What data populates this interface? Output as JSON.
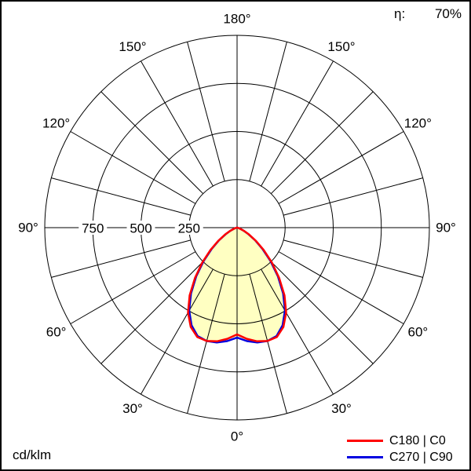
{
  "chart_data": {
    "type": "polar",
    "title": "",
    "units": "cd/klm",
    "efficiency_label": "η:",
    "efficiency_value": "70%",
    "radial_max": 1000,
    "radial_ticks": [
      750,
      500,
      250
    ],
    "grid_circles": [
      250,
      500,
      750,
      1000
    ],
    "angle_ticks_deg": [
      0,
      30,
      60,
      90,
      120,
      150,
      180
    ],
    "spoke_step_deg": 15,
    "gamma_step_deg": 5,
    "fill_color": "#ffffc2",
    "legend_position": "bottom-right",
    "series": [
      {
        "name": "C180 | C0",
        "color": "#ff0000",
        "values": [
          555,
          580,
          600,
          610,
          605,
          570,
          510,
          430,
          340,
          255,
          180,
          120,
          72,
          40,
          19,
          9,
          4,
          1,
          0
        ]
      },
      {
        "name": "C270 | C90",
        "color": "#0000e0",
        "values": [
          572,
          592,
          606,
          610,
          600,
          560,
          498,
          418,
          330,
          246,
          172,
          114,
          68,
          37,
          17,
          8,
          3,
          1,
          0
        ]
      }
    ]
  }
}
